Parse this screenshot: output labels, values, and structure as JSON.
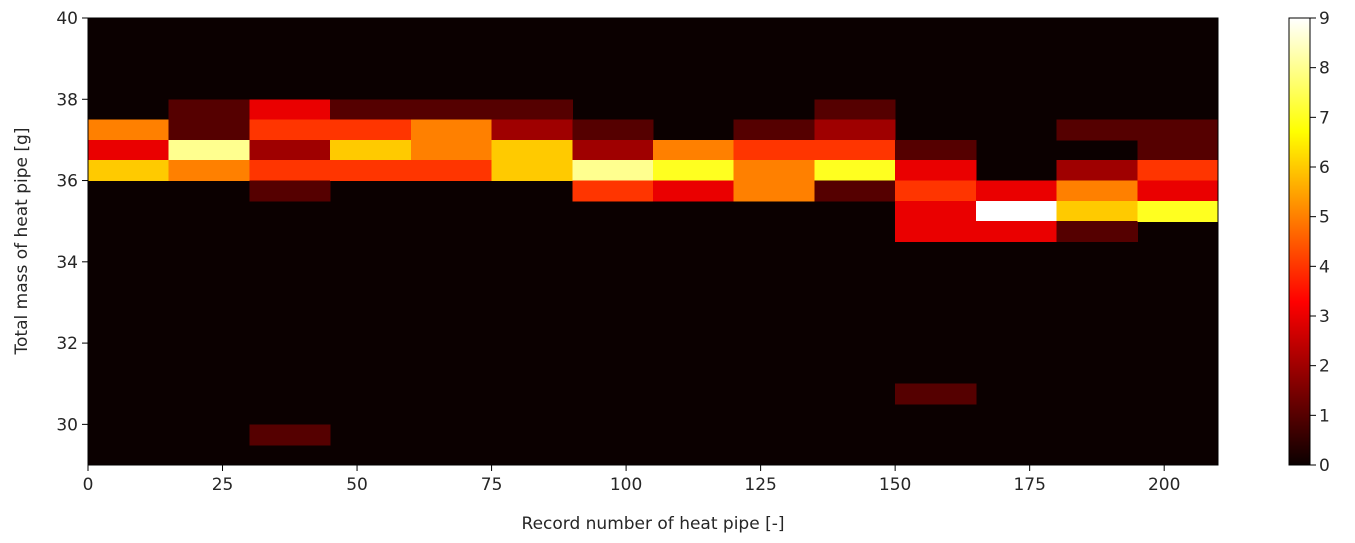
{
  "chart_data": {
    "type": "heatmap",
    "title": "",
    "xlabel": "Record number of heat pipe [-]",
    "ylabel": "Total mass of heat pipe [g]",
    "xlim": [
      0,
      210
    ],
    "ylim": [
      29,
      40
    ],
    "x_ticks": [
      0,
      25,
      50,
      75,
      100,
      125,
      150,
      175,
      200
    ],
    "y_ticks": [
      30,
      32,
      34,
      36,
      38,
      40
    ],
    "x_bin_edges": [
      0,
      15,
      30,
      45,
      60,
      75,
      90,
      105,
      120,
      135,
      150,
      165,
      180,
      195,
      210
    ],
    "y_bin_edges": [
      29.5,
      30.0,
      30.5,
      31.0,
      34.5,
      35.0,
      35.5,
      36.0,
      36.5,
      37.0,
      37.5,
      38.0
    ],
    "colorbar": {
      "colormap": "hot",
      "vmin": 0,
      "vmax": 9,
      "ticks": [
        0,
        1,
        2,
        3,
        4,
        5,
        6,
        7,
        8,
        9
      ]
    },
    "cells": [
      {
        "x": [
          0,
          15
        ],
        "y": [
          37.0,
          37.5
        ],
        "count": 5
      },
      {
        "x": [
          0,
          15
        ],
        "y": [
          36.5,
          37.0
        ],
        "count": 3
      },
      {
        "x": [
          0,
          15
        ],
        "y": [
          36.0,
          36.5
        ],
        "count": 6
      },
      {
        "x": [
          15,
          30
        ],
        "y": [
          37.5,
          38.0
        ],
        "count": 1
      },
      {
        "x": [
          15,
          30
        ],
        "y": [
          37.0,
          37.5
        ],
        "count": 1
      },
      {
        "x": [
          15,
          30
        ],
        "y": [
          36.5,
          37.0
        ],
        "count": 8
      },
      {
        "x": [
          15,
          30
        ],
        "y": [
          36.0,
          36.5
        ],
        "count": 5
      },
      {
        "x": [
          30,
          45
        ],
        "y": [
          37.5,
          38.0
        ],
        "count": 3
      },
      {
        "x": [
          30,
          45
        ],
        "y": [
          37.0,
          37.5
        ],
        "count": 4
      },
      {
        "x": [
          30,
          45
        ],
        "y": [
          36.5,
          37.0
        ],
        "count": 2
      },
      {
        "x": [
          30,
          45
        ],
        "y": [
          36.0,
          36.5
        ],
        "count": 4
      },
      {
        "x": [
          30,
          45
        ],
        "y": [
          35.5,
          36.0
        ],
        "count": 1
      },
      {
        "x": [
          30,
          45
        ],
        "y": [
          29.5,
          30.0
        ],
        "count": 1
      },
      {
        "x": [
          45,
          60
        ],
        "y": [
          37.5,
          38.0
        ],
        "count": 1
      },
      {
        "x": [
          45,
          60
        ],
        "y": [
          37.0,
          37.5
        ],
        "count": 4
      },
      {
        "x": [
          45,
          60
        ],
        "y": [
          36.5,
          37.0
        ],
        "count": 6
      },
      {
        "x": [
          45,
          60
        ],
        "y": [
          36.0,
          36.5
        ],
        "count": 4
      },
      {
        "x": [
          60,
          75
        ],
        "y": [
          37.5,
          38.0
        ],
        "count": 1
      },
      {
        "x": [
          60,
          75
        ],
        "y": [
          37.0,
          37.5
        ],
        "count": 5
      },
      {
        "x": [
          60,
          75
        ],
        "y": [
          36.5,
          37.0
        ],
        "count": 5
      },
      {
        "x": [
          60,
          75
        ],
        "y": [
          36.0,
          36.5
        ],
        "count": 4
      },
      {
        "x": [
          75,
          90
        ],
        "y": [
          37.5,
          38.0
        ],
        "count": 1
      },
      {
        "x": [
          75,
          90
        ],
        "y": [
          37.0,
          37.5
        ],
        "count": 2
      },
      {
        "x": [
          75,
          90
        ],
        "y": [
          36.5,
          37.0
        ],
        "count": 6
      },
      {
        "x": [
          75,
          90
        ],
        "y": [
          36.0,
          36.5
        ],
        "count": 6
      },
      {
        "x": [
          90,
          105
        ],
        "y": [
          37.0,
          37.5
        ],
        "count": 1
      },
      {
        "x": [
          90,
          105
        ],
        "y": [
          36.5,
          37.0
        ],
        "count": 2
      },
      {
        "x": [
          90,
          105
        ],
        "y": [
          36.0,
          36.5
        ],
        "count": 8
      },
      {
        "x": [
          90,
          105
        ],
        "y": [
          35.5,
          36.0
        ],
        "count": 4
      },
      {
        "x": [
          105,
          120
        ],
        "y": [
          36.5,
          37.0
        ],
        "count": 5
      },
      {
        "x": [
          105,
          120
        ],
        "y": [
          36.0,
          36.5
        ],
        "count": 7
      },
      {
        "x": [
          105,
          120
        ],
        "y": [
          35.5,
          36.0
        ],
        "count": 3
      },
      {
        "x": [
          120,
          135
        ],
        "y": [
          37.0,
          37.5
        ],
        "count": 1
      },
      {
        "x": [
          120,
          135
        ],
        "y": [
          36.5,
          37.0
        ],
        "count": 4
      },
      {
        "x": [
          120,
          135
        ],
        "y": [
          36.0,
          36.5
        ],
        "count": 5
      },
      {
        "x": [
          120,
          135
        ],
        "y": [
          35.5,
          36.0
        ],
        "count": 5
      },
      {
        "x": [
          135,
          150
        ],
        "y": [
          37.5,
          38.0
        ],
        "count": 1
      },
      {
        "x": [
          135,
          150
        ],
        "y": [
          37.0,
          37.5
        ],
        "count": 2
      },
      {
        "x": [
          135,
          150
        ],
        "y": [
          36.5,
          37.0
        ],
        "count": 4
      },
      {
        "x": [
          135,
          150
        ],
        "y": [
          36.0,
          36.5
        ],
        "count": 7
      },
      {
        "x": [
          135,
          150
        ],
        "y": [
          35.5,
          36.0
        ],
        "count": 1
      },
      {
        "x": [
          150,
          165
        ],
        "y": [
          36.5,
          37.0
        ],
        "count": 1
      },
      {
        "x": [
          150,
          165
        ],
        "y": [
          36.0,
          36.5
        ],
        "count": 3
      },
      {
        "x": [
          150,
          165
        ],
        "y": [
          35.5,
          36.0
        ],
        "count": 4
      },
      {
        "x": [
          150,
          165
        ],
        "y": [
          35.0,
          35.5
        ],
        "count": 3
      },
      {
        "x": [
          150,
          165
        ],
        "y": [
          34.5,
          35.0
        ],
        "count": 3
      },
      {
        "x": [
          150,
          165
        ],
        "y": [
          30.5,
          31.0
        ],
        "count": 1
      },
      {
        "x": [
          165,
          180
        ],
        "y": [
          35.5,
          36.0
        ],
        "count": 3
      },
      {
        "x": [
          165,
          180
        ],
        "y": [
          35.0,
          35.5
        ],
        "count": 9
      },
      {
        "x": [
          165,
          180
        ],
        "y": [
          34.5,
          35.0
        ],
        "count": 3
      },
      {
        "x": [
          180,
          195
        ],
        "y": [
          37.0,
          37.5
        ],
        "count": 1
      },
      {
        "x": [
          180,
          195
        ],
        "y": [
          36.0,
          36.5
        ],
        "count": 2
      },
      {
        "x": [
          180,
          195
        ],
        "y": [
          35.5,
          36.0
        ],
        "count": 5
      },
      {
        "x": [
          180,
          195
        ],
        "y": [
          35.0,
          35.5
        ],
        "count": 6
      },
      {
        "x": [
          180,
          195
        ],
        "y": [
          34.5,
          35.0
        ],
        "count": 1
      },
      {
        "x": [
          195,
          210
        ],
        "y": [
          37.0,
          37.5
        ],
        "count": 1
      },
      {
        "x": [
          195,
          210
        ],
        "y": [
          36.5,
          37.0
        ],
        "count": 1
      },
      {
        "x": [
          195,
          210
        ],
        "y": [
          36.0,
          36.5
        ],
        "count": 4
      },
      {
        "x": [
          195,
          210
        ],
        "y": [
          35.5,
          36.0
        ],
        "count": 3
      },
      {
        "x": [
          195,
          210
        ],
        "y": [
          35.0,
          35.5
        ],
        "count": 7
      }
    ]
  }
}
